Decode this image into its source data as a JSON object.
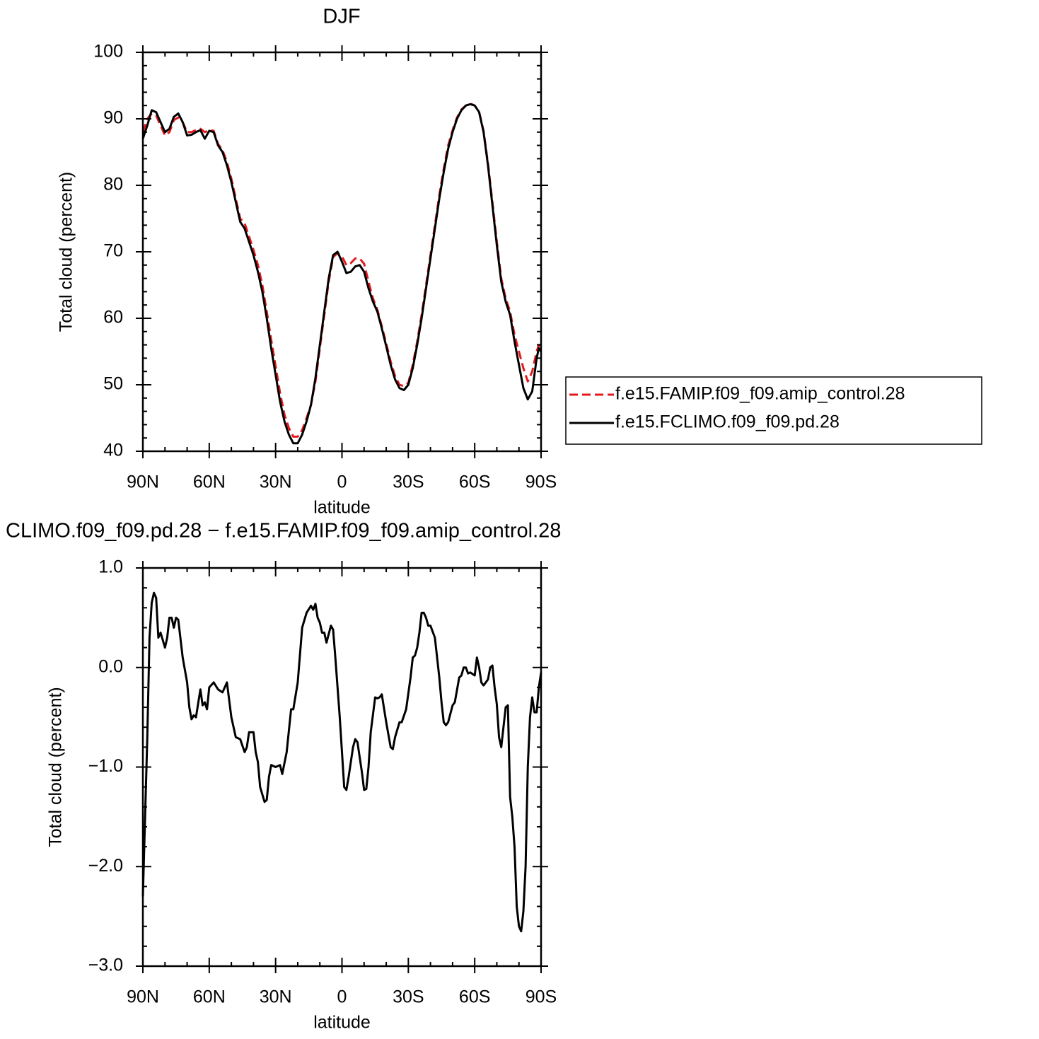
{
  "chart_data": [
    {
      "type": "line",
      "title": "DJF",
      "xlabel": "latitude",
      "ylabel": "Total cloud (percent)",
      "xlim": [
        90,
        -90
      ],
      "xticks": [
        {
          "value": 90,
          "label": "90N"
        },
        {
          "value": 60,
          "label": "60N"
        },
        {
          "value": 30,
          "label": "30N"
        },
        0,
        {
          "value": -30,
          "label": "30S"
        },
        {
          "value": -60,
          "label": "60S"
        },
        {
          "value": -90,
          "label": "90S"
        }
      ],
      "xminorticks": [
        80,
        70,
        50,
        40,
        20,
        10,
        -10,
        -20,
        -40,
        -50,
        -70,
        -80
      ],
      "ylim": [
        40,
        100
      ],
      "yticks": [
        40,
        50,
        60,
        70,
        80,
        90,
        100
      ],
      "yminorticks": [
        42,
        44,
        46,
        48,
        52,
        54,
        56,
        58,
        62,
        64,
        66,
        68,
        72,
        74,
        76,
        78,
        82,
        84,
        86,
        88,
        92,
        94,
        96,
        98
      ],
      "legend": "right",
      "x": [
        90,
        88,
        86,
        84,
        82,
        80,
        78,
        76,
        74,
        72,
        70,
        68,
        66,
        64,
        62,
        60,
        58,
        56,
        54,
        52,
        50,
        48,
        46,
        44,
        42,
        40,
        38,
        36,
        34,
        32,
        30,
        28,
        26,
        24,
        22,
        20,
        18,
        16,
        14,
        12,
        10,
        8,
        6,
        4,
        2,
        0,
        -2,
        -4,
        -6,
        -8,
        -10,
        -12,
        -14,
        -16,
        -18,
        -20,
        -22,
        -24,
        -26,
        -28,
        -30,
        -32,
        -34,
        -36,
        -38,
        -40,
        -42,
        -44,
        -46,
        -48,
        -50,
        -52,
        -54,
        -56,
        -58,
        -60,
        -62,
        -64,
        -66,
        -68,
        -70,
        -72,
        -74,
        -76,
        -78,
        -80,
        -82,
        -84,
        -86,
        -88,
        -89,
        -90
      ],
      "series": [
        {
          "name": "f.e15.FAMIP.f09_f09.amip_control.28",
          "color": "#e41a1c",
          "linestyle": "dashed",
          "values": [
            88,
            90,
            90.8,
            90.5,
            89,
            87.5,
            88,
            89.8,
            90.2,
            89.5,
            88,
            88,
            88.3,
            88.5,
            88,
            88.3,
            88.2,
            86.2,
            85.3,
            83.5,
            81,
            78,
            75,
            74.3,
            72.3,
            70.3,
            68,
            65,
            61,
            56.8,
            52.8,
            48.8,
            45.5,
            43.5,
            42.2,
            42.2,
            43.2,
            45,
            47,
            50.5,
            55.5,
            60.5,
            65.5,
            69.2,
            69.8,
            69.3,
            68,
            68.3,
            69,
            69,
            68.2,
            65.5,
            63,
            61.3,
            58.8,
            56.2,
            53.5,
            51.3,
            50,
            49.8,
            50.3,
            53,
            56.5,
            60.5,
            65,
            69.5,
            74,
            78.5,
            82.5,
            86,
            88.3,
            90.2,
            91.4,
            92,
            92.3,
            92,
            91,
            88.2,
            83.3,
            77.5,
            71.5,
            66,
            63,
            61,
            57.5,
            55,
            52.5,
            50.5,
            52,
            55,
            56,
            55.5
          ]
        },
        {
          "name": "f.e15.FCLIMO.f09_f09.pd.28",
          "color": "#000000",
          "linestyle": "solid",
          "values": [
            87,
            89,
            91.3,
            91,
            89.5,
            88,
            88.5,
            90.3,
            90.8,
            89.5,
            87.5,
            87.6,
            88,
            88.3,
            87,
            88.2,
            88,
            86,
            85,
            83,
            80.5,
            77.5,
            74.5,
            73.5,
            71.5,
            69.5,
            67,
            64,
            60,
            55.5,
            51.5,
            47.5,
            44.5,
            42.5,
            41.2,
            41.2,
            42.5,
            44.5,
            47,
            51,
            56,
            61,
            66,
            69.5,
            70,
            68.5,
            66.8,
            67,
            67.8,
            68,
            67,
            64.5,
            62.5,
            61,
            58.5,
            55.8,
            53,
            50.8,
            49.5,
            49.2,
            50,
            52.5,
            56,
            60,
            64.5,
            69,
            73.5,
            78,
            82,
            85.5,
            88,
            90,
            91.3,
            92,
            92.2,
            92,
            91,
            88,
            83,
            77,
            71,
            65.5,
            62.5,
            60.5,
            56.5,
            53,
            49.5,
            47.8,
            49,
            54,
            55.5,
            55
          ]
        }
      ]
    },
    {
      "type": "line",
      "title": "CLIMO.f09_f09.pd.28 − f.e15.FAMIP.f09_f09.amip_control.28",
      "xlabel": "latitude",
      "ylabel": "Total cloud (percent)",
      "xlim": [
        90,
        -90
      ],
      "xticks": [
        {
          "value": 90,
          "label": "90N"
        },
        {
          "value": 60,
          "label": "60N"
        },
        {
          "value": 30,
          "label": "30N"
        },
        0,
        {
          "value": -30,
          "label": "30S"
        },
        {
          "value": -60,
          "label": "60S"
        },
        {
          "value": -90,
          "label": "90S"
        }
      ],
      "xminorticks": [
        80,
        70,
        50,
        40,
        20,
        10,
        -10,
        -20,
        -40,
        -50,
        -70,
        -80
      ],
      "ylim": [
        -3,
        1
      ],
      "yticks": [
        {
          "value": -3,
          "label": "−3.0"
        },
        {
          "value": -2,
          "label": "−2.0"
        },
        {
          "value": -1,
          "label": "−1.0"
        },
        {
          "value": 0,
          "label": "0.0"
        },
        {
          "value": 1,
          "label": "1.0"
        }
      ],
      "yminorticks": [
        -2.8,
        -2.6,
        -2.4,
        -2.2,
        -1.8,
        -1.6,
        -1.4,
        -1.2,
        -0.8,
        -0.6,
        -0.4,
        -0.2,
        0.2,
        0.4,
        0.6,
        0.8
      ],
      "x": [
        90,
        88,
        87,
        86,
        85,
        84,
        83,
        82,
        80,
        79,
        78,
        77,
        76,
        75,
        74,
        72,
        70,
        69,
        68,
        67,
        66,
        64,
        63,
        62,
        61,
        60,
        58,
        56,
        54,
        52,
        50,
        48,
        46,
        44,
        43,
        42,
        40,
        39,
        38,
        37,
        35,
        34,
        33,
        32,
        30,
        28,
        27,
        25,
        23,
        22,
        20,
        18,
        16,
        14,
        13,
        12,
        11,
        10,
        9,
        8,
        7,
        5,
        4,
        3,
        1,
        -1,
        -2,
        -3,
        -5,
        -6,
        -7,
        -8,
        -9,
        -10,
        -11,
        -12,
        -13,
        -15,
        -16,
        -17,
        -18,
        -20,
        -22,
        -23,
        -24,
        -26,
        -27,
        -29,
        -31,
        -32,
        -33,
        -34,
        -35,
        -36,
        -37,
        -38,
        -39,
        -40,
        -42,
        -44,
        -45,
        -46,
        -47,
        -48,
        -50,
        -51,
        -53,
        -54,
        -55,
        -56,
        -57,
        -58,
        -60,
        -61,
        -62,
        -63,
        -64,
        -66,
        -67,
        -68,
        -69,
        -70,
        -71,
        -72,
        -73,
        -74,
        -75,
        -76,
        -77,
        -78,
        -79,
        -80,
        -81,
        -82,
        -83,
        -84,
        -85,
        -86,
        -87,
        -88,
        -89,
        -90
      ],
      "series": [
        {
          "color": "#000000",
          "linestyle": "solid",
          "values": [
            -2.3,
            -0.7,
            0.3,
            0.65,
            0.75,
            0.7,
            0.3,
            0.35,
            0.2,
            0.3,
            0.5,
            0.5,
            0.4,
            0.5,
            0.48,
            0.1,
            -0.15,
            -0.4,
            -0.52,
            -0.48,
            -0.5,
            -0.22,
            -0.38,
            -0.35,
            -0.42,
            -0.2,
            -0.15,
            -0.22,
            -0.25,
            -0.15,
            -0.5,
            -0.7,
            -0.72,
            -0.85,
            -0.8,
            -0.65,
            -0.65,
            -0.85,
            -0.95,
            -1.2,
            -1.35,
            -1.33,
            -1.1,
            -0.98,
            -1.0,
            -0.98,
            -1.07,
            -0.85,
            -0.42,
            -0.42,
            -0.15,
            0.4,
            0.55,
            0.62,
            0.58,
            0.64,
            0.5,
            0.45,
            0.35,
            0.35,
            0.25,
            0.42,
            0.38,
            0.1,
            -0.5,
            -1.2,
            -1.23,
            -1.1,
            -0.8,
            -0.72,
            -0.75,
            -0.9,
            -1.05,
            -1.23,
            -1.22,
            -1.0,
            -0.65,
            -0.3,
            -0.31,
            -0.3,
            -0.27,
            -0.55,
            -0.8,
            -0.82,
            -0.7,
            -0.55,
            -0.55,
            -0.42,
            -0.1,
            0.1,
            0.12,
            0.2,
            0.35,
            0.55,
            0.55,
            0.5,
            0.42,
            0.42,
            0.3,
            -0.1,
            -0.35,
            -0.55,
            -0.58,
            -0.55,
            -0.38,
            -0.35,
            -0.1,
            -0.08,
            0.0,
            0.0,
            -0.06,
            -0.05,
            -0.08,
            0.1,
            0.0,
            -0.15,
            -0.18,
            -0.12,
            0.0,
            0.02,
            -0.2,
            -0.37,
            -0.7,
            -0.8,
            -0.6,
            -0.4,
            -0.38,
            -1.3,
            -1.5,
            -1.8,
            -2.4,
            -2.6,
            -2.65,
            -2.45,
            -2.0,
            -1.0,
            -0.5,
            -0.3,
            -0.45,
            -0.45,
            -0.2,
            -0.05
          ]
        }
      ]
    }
  ]
}
